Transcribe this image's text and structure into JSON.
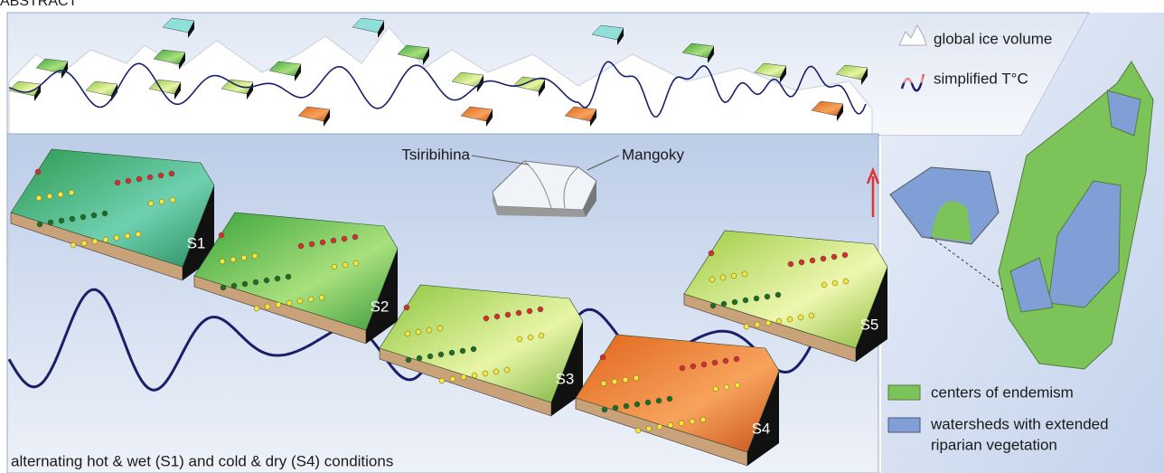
{
  "header": {
    "title": "ABSTRACT"
  },
  "top_legend": [
    {
      "label": "global ice volume"
    },
    {
      "label": "simplified T°C"
    }
  ],
  "rivers": [
    {
      "label": "Tsiribihina"
    },
    {
      "label": "Mangoky"
    }
  ],
  "stages": [
    {
      "label": "S1"
    },
    {
      "label": "S2"
    },
    {
      "label": "S3"
    },
    {
      "label": "S4"
    },
    {
      "label": "S5"
    }
  ],
  "map_legend": [
    {
      "label": "centers of endemism"
    },
    {
      "lines": [
        "watersheds with extended",
        "riparian vegetation"
      ]
    }
  ],
  "caption": "alternating hot & wet (S1) and cold & dry (S4) conditions"
}
